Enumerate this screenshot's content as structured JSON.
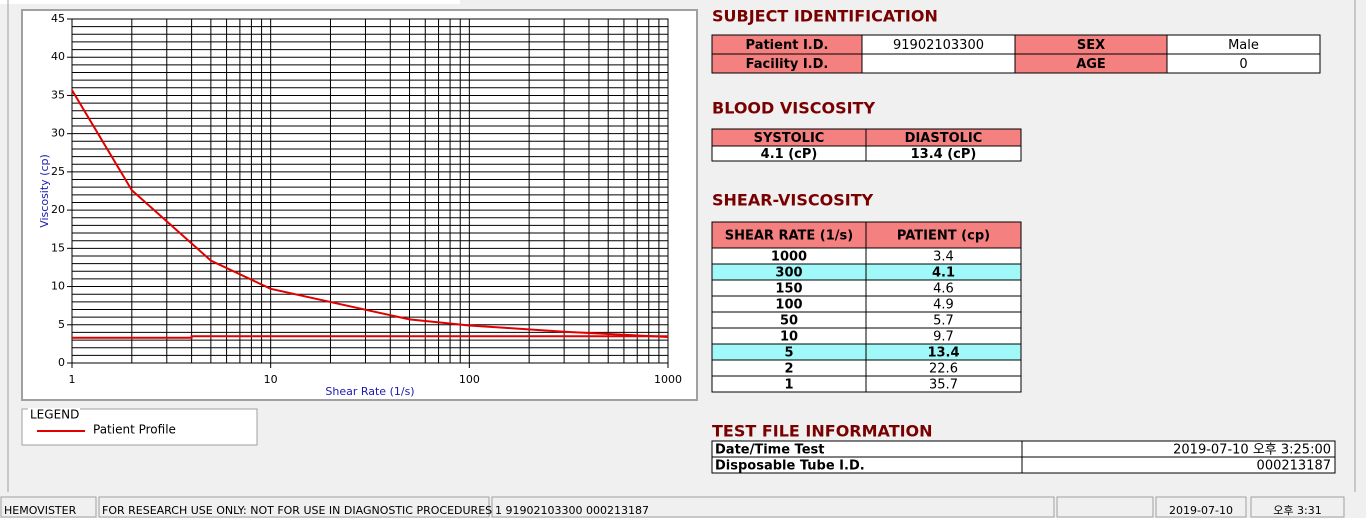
{
  "chart_data": {
    "type": "line",
    "xlabel": "Shear Rate (1/s)",
    "ylabel": "Viscosity (cp)",
    "xlog": true,
    "xlim": [
      1,
      1000
    ],
    "ylim": [
      0,
      45
    ],
    "xticks": [
      1,
      10,
      100,
      1000
    ],
    "yticks": [
      0,
      5,
      10,
      15,
      20,
      25,
      30,
      35,
      40,
      45
    ],
    "xgrid": [
      2,
      3,
      4,
      5,
      6,
      7,
      8,
      9,
      10,
      20,
      30,
      40,
      50,
      60,
      70,
      80,
      90,
      100,
      200,
      300,
      400,
      500,
      600,
      700,
      800,
      900
    ],
    "ygrid": [
      1,
      2,
      3,
      4,
      5,
      6,
      7,
      8,
      9,
      10,
      11,
      12,
      13,
      14,
      15,
      16,
      17,
      18,
      19,
      20,
      21,
      22,
      23,
      24,
      25,
      26,
      27,
      28,
      29,
      30,
      31,
      32,
      33,
      34,
      35,
      36,
      37,
      38,
      39,
      40,
      41,
      42,
      43,
      44
    ],
    "legend_title": "LEGEND",
    "series": [
      {
        "name": "Patient Profile",
        "color": "#e00000",
        "x": [
          1,
          2,
          5,
          10,
          50,
          100,
          150,
          300,
          1000
        ],
        "values": [
          35.7,
          22.6,
          13.4,
          9.7,
          5.7,
          4.9,
          4.6,
          4.1,
          3.4
        ]
      },
      {
        "color": "#e00000",
        "x": [
          1,
          4,
          4,
          1000
        ],
        "values": [
          3.3,
          3.3,
          3.5,
          3.5
        ]
      }
    ]
  },
  "subject": {
    "title": "SUBJECT IDENTIFICATION",
    "rows": [
      [
        "Patient I.D.",
        "91902103300",
        "SEX",
        "Male"
      ],
      [
        "Facility I.D.",
        null,
        "AGE",
        "0"
      ]
    ]
  },
  "blood_viscosity": {
    "title": "BLOOD VISCOSITY",
    "headers": [
      "SYSTOLIC",
      "DIASTOLIC"
    ],
    "values": [
      "4.1 (cP)",
      "13.4 (cP)"
    ]
  },
  "shear_viscosity": {
    "title": "SHEAR-VISCOSITY",
    "headers": [
      "SHEAR RATE (1/s)",
      "PATIENT (cp)"
    ],
    "rows": [
      [
        1000,
        3.4
      ],
      [
        300,
        4.1
      ],
      [
        150,
        4.6
      ],
      [
        100,
        4.9
      ],
      [
        50,
        5.7
      ],
      [
        10,
        9.7
      ],
      [
        5,
        13.4
      ],
      [
        2,
        22.6
      ],
      [
        1,
        35.7
      ]
    ],
    "highlight_rows": [
      1,
      6
    ],
    "highlight_color": "#a0f8f8"
  },
  "test_file": {
    "title": "TEST FILE INFORMATION",
    "rows": [
      [
        "Date/Time Test",
        "2019-07-10   오후 3:25:00"
      ],
      [
        "Disposable Tube I.D.",
        "000213187"
      ]
    ]
  },
  "status_bar": [
    "HEMOVISTER",
    "FOR RESEARCH USE ONLY: NOT FOR USE IN DIAGNOSTIC PROCEDURES",
    "1  91902103300  000213187",
    "2019-07-10",
    "오후 3:31"
  ]
}
